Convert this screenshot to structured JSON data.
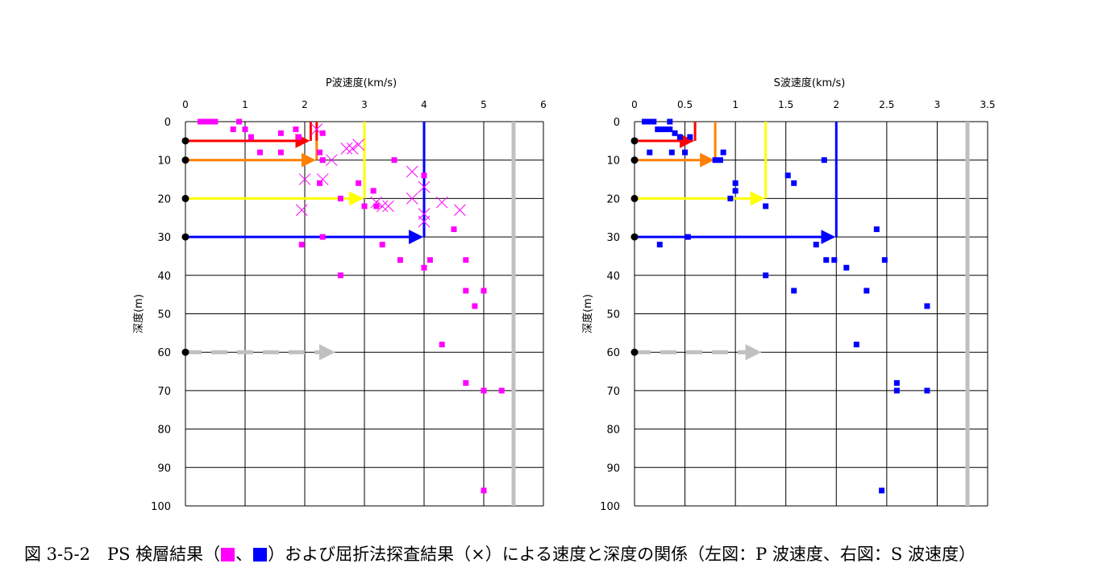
{
  "chart_data": [
    {
      "type": "scatter",
      "title": "P波速度(km/s)",
      "ylabel": "深度(m)",
      "xlim": [
        0,
        6
      ],
      "ylim": [
        0,
        100
      ],
      "y_inverted": true,
      "x_axis_position": "top",
      "xticks": [
        0,
        1,
        2,
        3,
        4,
        5,
        6
      ],
      "yticks": [
        0,
        10,
        20,
        30,
        40,
        50,
        60,
        70,
        80,
        90,
        100
      ],
      "grid": true,
      "series": [
        {
          "marker": "square",
          "color": "#ff00ff",
          "points": [
            [
              0.25,
              0
            ],
            [
              0.3,
              0
            ],
            [
              0.35,
              0
            ],
            [
              0.4,
              0
            ],
            [
              0.45,
              0
            ],
            [
              0.5,
              0
            ],
            [
              0.9,
              0
            ],
            [
              0.8,
              2
            ],
            [
              1.0,
              2
            ],
            [
              1.1,
              4
            ],
            [
              1.6,
              3
            ],
            [
              1.85,
              2
            ],
            [
              1.9,
              4
            ],
            [
              2.3,
              3
            ],
            [
              1.25,
              8
            ],
            [
              1.6,
              8
            ],
            [
              2.25,
              8
            ],
            [
              2.3,
              10
            ],
            [
              3.5,
              10
            ],
            [
              4.0,
              14
            ],
            [
              2.25,
              16
            ],
            [
              2.9,
              16
            ],
            [
              3.15,
              18
            ],
            [
              2.6,
              20
            ],
            [
              3.0,
              22
            ],
            [
              3.2,
              22
            ],
            [
              4.5,
              28
            ],
            [
              2.3,
              30
            ],
            [
              1.95,
              32
            ],
            [
              3.3,
              32
            ],
            [
              3.6,
              36
            ],
            [
              4.1,
              36
            ],
            [
              4.7,
              36
            ],
            [
              4.0,
              38
            ],
            [
              2.6,
              40
            ],
            [
              4.7,
              44
            ],
            [
              5.0,
              44
            ],
            [
              4.85,
              48
            ],
            [
              4.3,
              58
            ],
            [
              4.7,
              68
            ],
            [
              5.0,
              70
            ],
            [
              5.3,
              70
            ],
            [
              5.0,
              96
            ]
          ]
        },
        {
          "marker": "x",
          "color": "#ff00ff",
          "points": [
            [
              2.2,
              2
            ],
            [
              2.45,
              10
            ],
            [
              2.7,
              7
            ],
            [
              2.8,
              7
            ],
            [
              2.9,
              6
            ],
            [
              2.0,
              15
            ],
            [
              2.3,
              15
            ],
            [
              3.8,
              13
            ],
            [
              4.0,
              17
            ],
            [
              1.95,
              23
            ],
            [
              3.2,
              21
            ],
            [
              3.3,
              22
            ],
            [
              3.4,
              22
            ],
            [
              3.8,
              20
            ],
            [
              4.0,
              24
            ],
            [
              4.0,
              26
            ],
            [
              4.3,
              21
            ],
            [
              4.6,
              23
            ]
          ]
        }
      ],
      "profile_lines": [
        {
          "color": "#ff0000",
          "velocity": 2.1,
          "depth_from": 0,
          "depth_to": 5
        },
        {
          "color": "#ff0000",
          "velocity": 2.2,
          "depth_from": 0,
          "depth_to": 5
        },
        {
          "color": "#ff8000",
          "velocity": 2.2,
          "depth_from": 5,
          "depth_to": 10
        },
        {
          "color": "#ffff00",
          "velocity": 3.0,
          "depth_from": 0,
          "depth_to": 20
        },
        {
          "color": "#0000ff",
          "velocity": 4.0,
          "depth_from": 0,
          "depth_to": 30
        },
        {
          "color": "#c0c0c0",
          "velocity": 5.5,
          "depth_from": 0,
          "depth_to": 100
        }
      ],
      "arrows": [
        {
          "color": "#ff0000",
          "depth": 5,
          "to_velocity": 2.1
        },
        {
          "color": "#ff8000",
          "depth": 10,
          "to_velocity": 2.2
        },
        {
          "color": "#ffff00",
          "depth": 20,
          "to_velocity": 3.0
        },
        {
          "color": "#0000ff",
          "depth": 30,
          "to_velocity": 4.0
        },
        {
          "color": "#c0c0c0",
          "depth": 60,
          "to_velocity": 2.5,
          "dashed": true
        }
      ]
    },
    {
      "type": "scatter",
      "title": "S波速度(km/s)",
      "ylabel": "深度(m)",
      "xlim": [
        0,
        3.5
      ],
      "ylim": [
        0,
        100
      ],
      "y_inverted": true,
      "x_axis_position": "top",
      "xticks": [
        0,
        0.5,
        1,
        1.5,
        2,
        2.5,
        3,
        3.5
      ],
      "yticks": [
        0,
        10,
        20,
        30,
        40,
        50,
        60,
        70,
        80,
        90,
        100
      ],
      "grid": true,
      "series": [
        {
          "marker": "square",
          "color": "#0000ff",
          "points": [
            [
              0.1,
              0
            ],
            [
              0.13,
              0
            ],
            [
              0.16,
              0
            ],
            [
              0.19,
              0
            ],
            [
              0.35,
              0
            ],
            [
              0.23,
              2
            ],
            [
              0.26,
              2
            ],
            [
              0.3,
              2
            ],
            [
              0.35,
              2
            ],
            [
              0.4,
              3
            ],
            [
              0.45,
              4
            ],
            [
              0.55,
              4
            ],
            [
              0.15,
              8
            ],
            [
              0.37,
              8
            ],
            [
              0.5,
              8
            ],
            [
              0.88,
              8
            ],
            [
              0.8,
              10
            ],
            [
              0.85,
              10
            ],
            [
              1.88,
              10
            ],
            [
              1.52,
              14
            ],
            [
              1.58,
              16
            ],
            [
              1.0,
              16
            ],
            [
              1.0,
              18
            ],
            [
              0.95,
              20
            ],
            [
              1.3,
              22
            ],
            [
              2.4,
              28
            ],
            [
              0.53,
              30
            ],
            [
              0.25,
              32
            ],
            [
              1.8,
              32
            ],
            [
              1.9,
              36
            ],
            [
              1.98,
              36
            ],
            [
              2.48,
              36
            ],
            [
              2.1,
              38
            ],
            [
              1.3,
              40
            ],
            [
              1.58,
              44
            ],
            [
              2.3,
              44
            ],
            [
              2.9,
              48
            ],
            [
              2.2,
              58
            ],
            [
              2.6,
              68
            ],
            [
              2.6,
              70
            ],
            [
              2.9,
              70
            ],
            [
              2.45,
              96
            ]
          ]
        }
      ],
      "profile_lines": [
        {
          "color": "#ff0000",
          "velocity": 0.6,
          "depth_from": 0,
          "depth_to": 5
        },
        {
          "color": "#ff8000",
          "velocity": 0.8,
          "depth_from": 0,
          "depth_to": 10
        },
        {
          "color": "#ffff00",
          "velocity": 1.3,
          "depth_from": 0,
          "depth_to": 20
        },
        {
          "color": "#0000ff",
          "velocity": 2.0,
          "depth_from": 0,
          "depth_to": 30
        },
        {
          "color": "#c0c0c0",
          "velocity": 3.3,
          "depth_from": 0,
          "depth_to": 100
        }
      ],
      "arrows": [
        {
          "color": "#ff0000",
          "depth": 5,
          "to_velocity": 0.6
        },
        {
          "color": "#ff8000",
          "depth": 10,
          "to_velocity": 0.8
        },
        {
          "color": "#ffff00",
          "depth": 20,
          "to_velocity": 1.3
        },
        {
          "color": "#0000ff",
          "depth": 30,
          "to_velocity": 2.0
        },
        {
          "color": "#c0c0c0",
          "depth": 60,
          "to_velocity": 1.25,
          "dashed": true
        }
      ]
    }
  ],
  "caption": {
    "part1": "図 3-5-2　PS 検層結果（",
    "sep": "、",
    "part2": "）および屈折法探査結果（×）による速度と深度の関係（左図：P 波速度、右図：S 波速度）",
    "swatch_colors": [
      "#ff00ff",
      "#0000ff"
    ]
  }
}
